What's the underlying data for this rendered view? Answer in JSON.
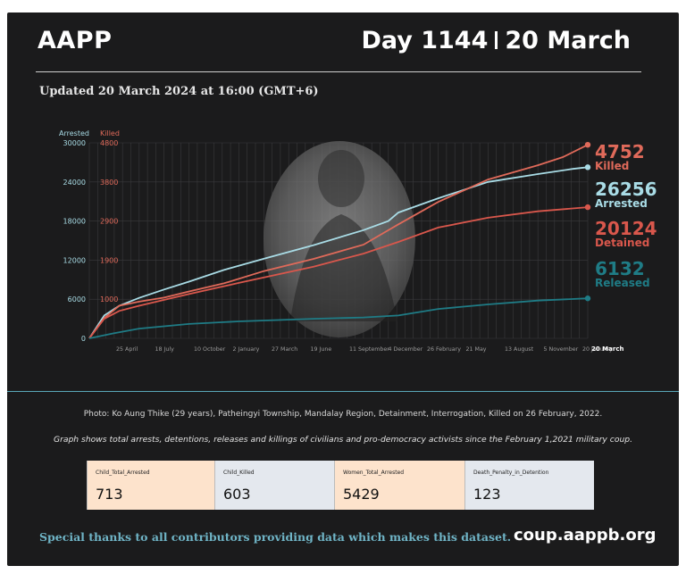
{
  "header": {
    "title": "AAPP",
    "day": "Day 1144",
    "date": "20 March",
    "updated": "Updated 20 March 2024 at 16:00 (GMT+6)"
  },
  "colors": {
    "background": "#1b1b1c",
    "killed": "#e06a5a",
    "arrested": "#a9dce6",
    "detained": "#d9574c",
    "released": "#1f7c86",
    "accent": "#6fb4c6"
  },
  "chart_data": {
    "type": "line",
    "left_axis_title": "Arrested",
    "right_axis_title": "Killed",
    "left_ticks": [
      "30000",
      "24000",
      "18000",
      "12000",
      "6000",
      "0"
    ],
    "right_ticks": [
      "4800",
      "3800",
      "2900",
      "1900",
      "1000"
    ],
    "ylim_left": [
      0,
      30000
    ],
    "ylim_right": [
      0,
      4800
    ],
    "x_ticks": [
      "25 April",
      "18 July",
      "10 October",
      "2 January",
      "27 March",
      "19 June",
      "11 September",
      "4 December",
      "26 February",
      "21 May",
      "13 August",
      "5 November",
      "20 January",
      "20 March"
    ],
    "grid": true,
    "series": [
      {
        "name": "Arrested",
        "axis": "left",
        "color": "#a9dce6",
        "end_value": 26256,
        "x": [
          0,
          0.03,
          0.06,
          0.1,
          0.15,
          0.2,
          0.27,
          0.35,
          0.45,
          0.55,
          0.6,
          0.62,
          0.7,
          0.8,
          0.9,
          0.97,
          1.0
        ],
        "values": [
          0,
          3500,
          5000,
          6200,
          7500,
          8700,
          10500,
          12200,
          14300,
          16600,
          18000,
          19300,
          21500,
          24000,
          25200,
          26000,
          26256
        ]
      },
      {
        "name": "Killed",
        "axis": "right",
        "color": "#e06a5a",
        "end_value": 4752,
        "x": [
          0,
          0.03,
          0.06,
          0.1,
          0.15,
          0.2,
          0.27,
          0.35,
          0.45,
          0.55,
          0.62,
          0.7,
          0.8,
          0.9,
          0.95,
          1.0
        ],
        "values": [
          0,
          500,
          800,
          900,
          1000,
          1150,
          1350,
          1650,
          1950,
          2300,
          2800,
          3350,
          3900,
          4250,
          4450,
          4752
        ]
      },
      {
        "name": "Detained",
        "axis": "left",
        "color": "#d9574c",
        "end_value": 20124,
        "x": [
          0,
          0.03,
          0.06,
          0.1,
          0.2,
          0.3,
          0.45,
          0.55,
          0.62,
          0.7,
          0.8,
          0.9,
          1.0
        ],
        "values": [
          0,
          3000,
          4200,
          5000,
          6800,
          8500,
          11000,
          13000,
          14800,
          17000,
          18500,
          19500,
          20124
        ]
      },
      {
        "name": "Released",
        "axis": "left",
        "color": "#1f7c86",
        "end_value": 6132,
        "x": [
          0,
          0.05,
          0.1,
          0.2,
          0.3,
          0.45,
          0.55,
          0.62,
          0.7,
          0.8,
          0.9,
          1.0
        ],
        "values": [
          0,
          800,
          1500,
          2200,
          2600,
          3000,
          3200,
          3500,
          4500,
          5200,
          5800,
          6132
        ]
      }
    ],
    "end_labels": [
      {
        "value": "4752",
        "label": "Killed",
        "color": "#e06a5a"
      },
      {
        "value": "26256",
        "label": "Arrested",
        "color": "#a9dce6"
      },
      {
        "value": "20124",
        "label": "Detained",
        "color": "#d9574c"
      },
      {
        "value": "6132",
        "label": "Released",
        "color": "#1f7c86"
      }
    ]
  },
  "footer": {
    "photo_credit": "Photo: Ko Aung Thike (29 years), Patheingyi Township, Mandalay Region, Detainment, Interrogation, Killed on 26 February, 2022.",
    "graph_note": "Graph shows total arrests, detentions, releases and killings of civilians and pro-democracy activists since the February 1,2021 military coup.",
    "stats": [
      {
        "label": "Child_Total_Arrested",
        "value": "713",
        "bg": "#fde3cc"
      },
      {
        "label": "Child_Killed",
        "value": "603",
        "bg": "#e4e8ee"
      },
      {
        "label": "Women_Total_Arrested",
        "value": "5429",
        "bg": "#fde3cc"
      },
      {
        "label": "Death_Penalty_in_Detention",
        "value": "123",
        "bg": "#e4e8ee"
      }
    ],
    "thanks": "Special thanks to all contributors providing data which makes this dataset.",
    "site": "coup.aappb.org"
  }
}
